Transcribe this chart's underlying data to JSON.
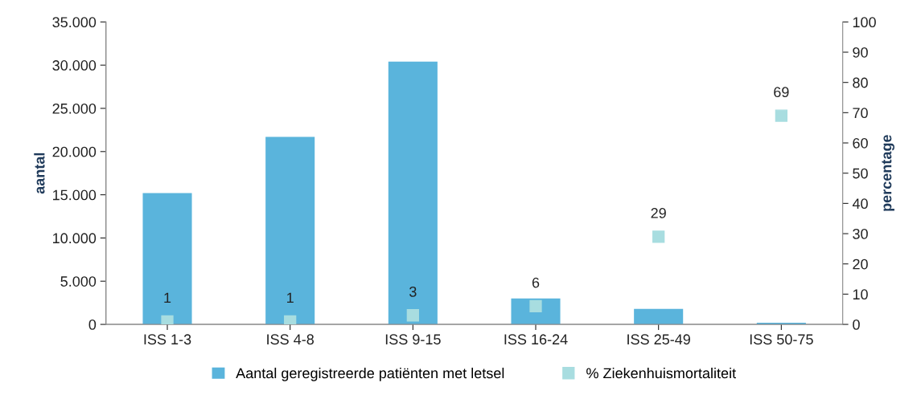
{
  "chart_data": {
    "type": "bar",
    "ylabel": "aantal",
    "y2label": "percentage",
    "categories": [
      "ISS 1-3",
      "ISS 4-8",
      "ISS 9-15",
      "ISS 16-24",
      "ISS 25-49",
      "ISS 50-75"
    ],
    "series": [
      {
        "name": "Aantal geregistreerde patiënten met letsel",
        "color": "#5ab4dc",
        "values": [
          15200,
          21700,
          30400,
          3000,
          1800,
          200
        ]
      },
      {
        "name": "% Ziekenhuismortaliteit",
        "type": "scatter",
        "axis": "y2",
        "marker": "square",
        "color": "#a8dde0",
        "values": [
          1,
          1,
          3,
          6,
          29,
          69
        ],
        "value_labels": [
          "1",
          "1",
          "3",
          "6",
          "29",
          "69"
        ]
      }
    ],
    "ylim": [
      0,
      35000
    ],
    "yticks": [
      0,
      {
        "value": 5000,
        "label": "5.000"
      },
      {
        "value": 10000,
        "label": "10.000"
      },
      {
        "value": 15000,
        "label": "15.000"
      },
      {
        "value": 20000,
        "label": "20.000"
      },
      {
        "value": 25000,
        "label": "25.000"
      },
      {
        "value": 30000,
        "label": "30.000"
      },
      {
        "value": 35000,
        "label": "35.000"
      }
    ],
    "y2lim": [
      0,
      100
    ],
    "y2ticks": [
      0,
      10,
      20,
      30,
      40,
      50,
      60,
      70,
      80,
      90,
      100
    ],
    "grid": false,
    "legend": "bottom"
  }
}
